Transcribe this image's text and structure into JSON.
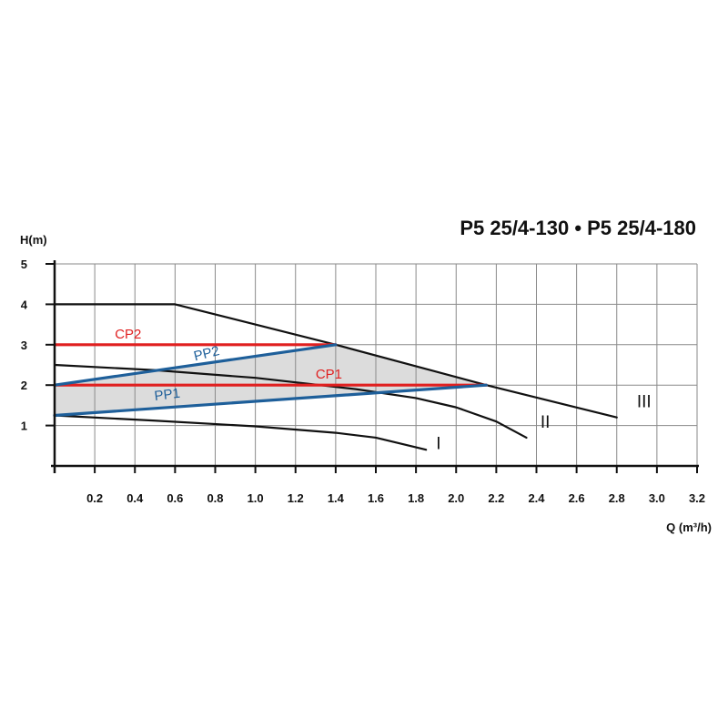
{
  "chart_data": {
    "type": "line",
    "title": "P5 25/4-130 • P5 25/4-180",
    "xlabel": "Q (m³/h)",
    "ylabel": "H(m)",
    "xlim": [
      0,
      3.2
    ],
    "ylim": [
      0,
      5
    ],
    "x_ticks": [
      "0.2",
      "0.4",
      "0.6",
      "0.8",
      "1.0",
      "1.2",
      "1.4",
      "1.6",
      "1.8",
      "2.0",
      "2.2",
      "2.4",
      "2.6",
      "2.8",
      "3.0",
      "3.2"
    ],
    "y_ticks": [
      "1",
      "2",
      "3",
      "4",
      "5"
    ],
    "grid": true,
    "region": {
      "description": "shaded operating area",
      "color": "#dcdcdc",
      "points": [
        [
          0,
          2.0
        ],
        [
          1.4,
          3.0
        ],
        [
          2.15,
          2.0
        ],
        [
          0,
          1.25
        ]
      ]
    },
    "series": [
      {
        "name": "III",
        "color": "#111111",
        "points": [
          [
            0,
            4.0
          ],
          [
            0.6,
            4.0
          ],
          [
            1.4,
            3.0
          ],
          [
            2.15,
            2.0
          ],
          [
            2.8,
            1.2
          ]
        ]
      },
      {
        "name": "II",
        "color": "#111111",
        "points": [
          [
            0,
            2.5
          ],
          [
            0.5,
            2.37
          ],
          [
            1.0,
            2.18
          ],
          [
            1.5,
            1.9
          ],
          [
            1.8,
            1.68
          ],
          [
            2.0,
            1.45
          ],
          [
            2.2,
            1.1
          ],
          [
            2.35,
            0.7
          ]
        ]
      },
      {
        "name": "I",
        "color": "#111111",
        "points": [
          [
            0,
            1.25
          ],
          [
            0.5,
            1.12
          ],
          [
            1.0,
            0.98
          ],
          [
            1.4,
            0.82
          ],
          [
            1.6,
            0.7
          ],
          [
            1.85,
            0.4
          ]
        ]
      },
      {
        "name": "CP2",
        "color": "#e02020",
        "points": [
          [
            0,
            3.0
          ],
          [
            1.4,
            3.0
          ]
        ]
      },
      {
        "name": "CP1",
        "color": "#e02020",
        "points": [
          [
            0,
            2.0
          ],
          [
            2.15,
            2.0
          ]
        ]
      },
      {
        "name": "PP2",
        "color": "#1e5f9a",
        "points": [
          [
            0,
            2.0
          ],
          [
            1.4,
            3.0
          ]
        ]
      },
      {
        "name": "PP1",
        "color": "#1e5f9a",
        "points": [
          [
            0,
            1.25
          ],
          [
            2.15,
            2.0
          ]
        ]
      }
    ],
    "labels": [
      {
        "text": "CP2",
        "x": 0.3,
        "y": 3.15,
        "color": "#e02020",
        "rotation": 0
      },
      {
        "text": "CP1",
        "x": 1.3,
        "y": 2.16,
        "color": "#e02020",
        "rotation": 0
      },
      {
        "text": "PP2",
        "x": 0.7,
        "y": 2.6,
        "color": "#1e5f9a",
        "rotation": -14
      },
      {
        "text": "PP1",
        "x": 0.5,
        "y": 1.62,
        "color": "#1e5f9a",
        "rotation": -7
      },
      {
        "text": "III",
        "x": 2.9,
        "y": 1.45,
        "color": "#111111",
        "rotation": 0
      },
      {
        "text": "II",
        "x": 2.42,
        "y": 0.95,
        "color": "#111111",
        "rotation": 0
      },
      {
        "text": "I",
        "x": 1.9,
        "y": 0.42,
        "color": "#111111",
        "rotation": 0
      }
    ]
  }
}
